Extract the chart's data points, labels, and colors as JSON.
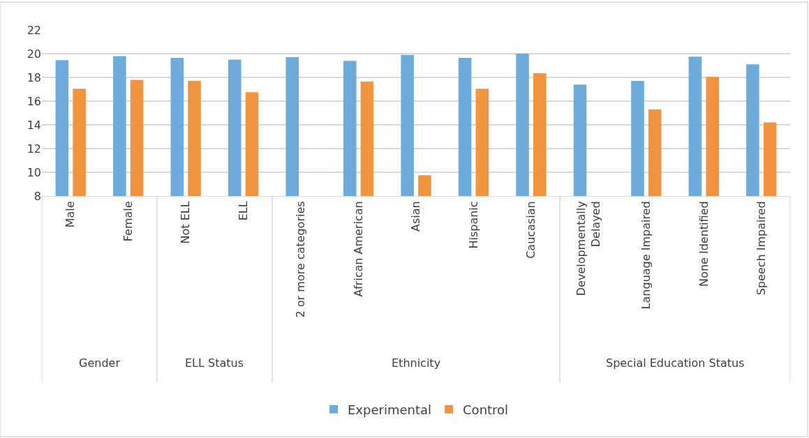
{
  "chart_data": {
    "type": "bar",
    "categories": [
      "Male",
      "Female",
      "Not ELL",
      "ELL",
      "2 or more categories",
      "African American",
      "Asian",
      "Hispanic",
      "Caucasian",
      "Developmentally Delayed",
      "Language Impaired",
      "None Identified",
      "Speech Impaired"
    ],
    "series": [
      {
        "name": "Experimental",
        "color": "#6dabdc",
        "values": [
          19.45,
          19.8,
          19.65,
          19.5,
          19.7,
          19.4,
          19.9,
          19.65,
          20.0,
          17.4,
          17.7,
          19.75,
          19.1
        ]
      },
      {
        "name": "Control",
        "color": "#f29340",
        "values": [
          17.05,
          17.8,
          17.7,
          16.75,
          null,
          17.65,
          9.75,
          17.05,
          18.35,
          null,
          15.3,
          18.05,
          14.2
        ]
      }
    ],
    "annotations": [
      "Gender",
      "ELL Status",
      "Ethnicity",
      "Special Education Status"
    ],
    "ylim": [
      8,
      22
    ],
    "yticks": [
      8,
      10,
      12,
      14,
      16,
      18,
      20,
      22
    ],
    "grid": "y",
    "legend": "bottom"
  }
}
